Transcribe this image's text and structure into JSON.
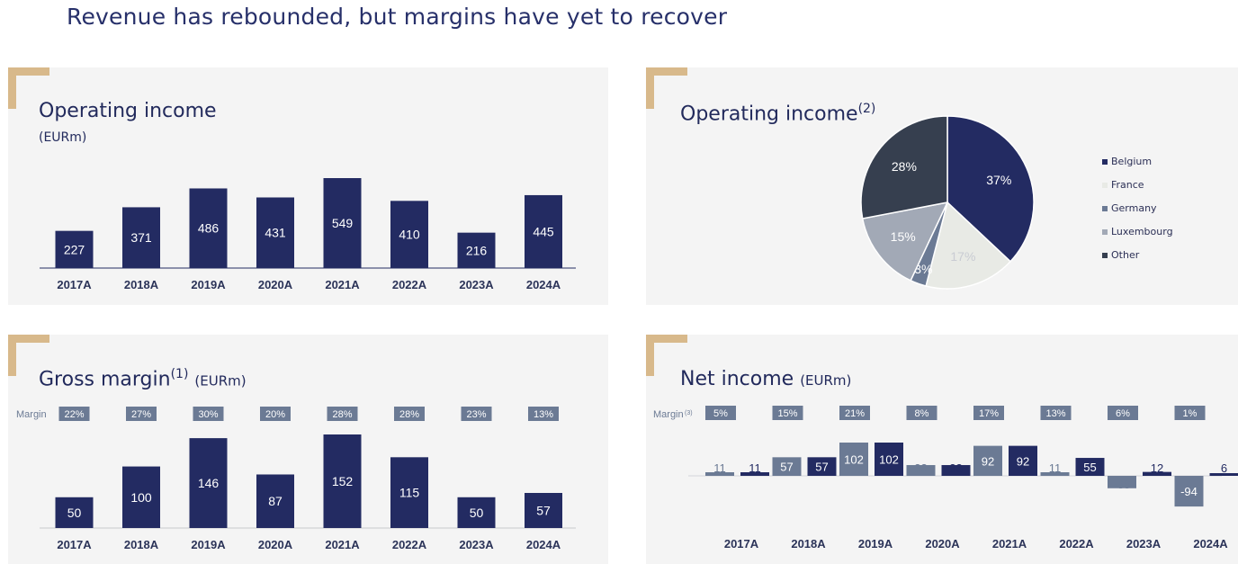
{
  "page_title": "Revenue has rebounded, but margins have yet to recover",
  "colors": {
    "navy": "#232b62",
    "slate": "#6b7a94",
    "panel_bg": "#f4f4f4",
    "accent_gold": "#d8b98b",
    "badge_bg": "#6b7a94"
  },
  "panels": {
    "operating_income_bar": {
      "title": "Operating income",
      "unit": "(EURm)"
    },
    "operating_income_pie": {
      "title": "Operating income",
      "sup": "(2)"
    },
    "gross_margin": {
      "title": "Gross margin",
      "sup": "(1)",
      "unit": "(EURm)",
      "margin_label": "Margin"
    },
    "net_income": {
      "title": "Net income",
      "unit": "(EURm)",
      "margin_label": "Margin",
      "margin_sup": "(3)"
    }
  },
  "chart_data": [
    {
      "type": "bar",
      "title": "Operating income",
      "ylabel": "(EURm)",
      "categories": [
        "2017A",
        "2018A",
        "2019A",
        "2020A",
        "2021A",
        "2022A",
        "2023A",
        "2024A"
      ],
      "values": [
        227,
        371,
        486,
        431,
        549,
        410,
        216,
        445
      ],
      "ylim": [
        0,
        600
      ]
    },
    {
      "type": "pie",
      "title": "Operating income",
      "labels": [
        "Belgium",
        "France",
        "Germany",
        "Luxembourg",
        "Other"
      ],
      "values": [
        37,
        17,
        3,
        15,
        28
      ],
      "value_labels": [
        "37%",
        "17%",
        "3%",
        "15%",
        "28%"
      ],
      "colors": [
        "#232b62",
        "#e8eae5",
        "#6b7a94",
        "#a2a9b6",
        "#363f4f"
      ],
      "legend_position": "right"
    },
    {
      "type": "bar",
      "title": "Gross margin",
      "ylabel": "(EURm)",
      "categories": [
        "2017A",
        "2018A",
        "2019A",
        "2020A",
        "2021A",
        "2022A",
        "2023A",
        "2024A"
      ],
      "values": [
        50,
        100,
        146,
        87,
        152,
        115,
        50,
        57
      ],
      "margins": [
        "22%",
        "27%",
        "30%",
        "20%",
        "28%",
        "28%",
        "23%",
        "13%"
      ],
      "ylim": [
        0,
        170
      ]
    },
    {
      "type": "bar",
      "title": "Net income",
      "ylabel": "(EURm)",
      "categories": [
        "2017A",
        "2018A",
        "2019A",
        "2020A",
        "2021A",
        "2022A",
        "2023A",
        "2024A"
      ],
      "series": [
        {
          "values": [
            11,
            57,
            102,
            33,
            92,
            11,
            -38,
            -94
          ],
          "color": "#6b7a94"
        },
        {
          "values": [
            11,
            57,
            102,
            33,
            92,
            55,
            12,
            6
          ],
          "color": "#232b62"
        }
      ],
      "margins": [
        "5%",
        "15%",
        "21%",
        "8%",
        "17%",
        "13%",
        "6%",
        "1%"
      ],
      "ylim": [
        -100,
        110
      ]
    }
  ]
}
